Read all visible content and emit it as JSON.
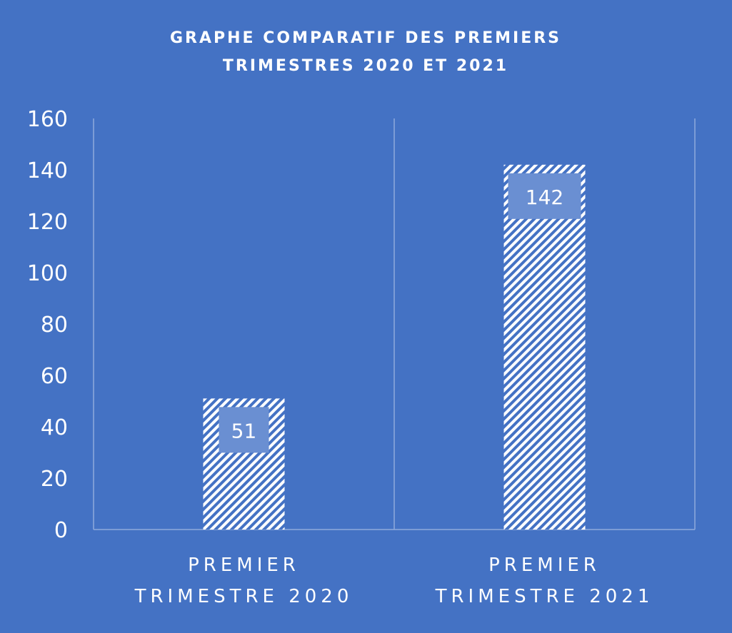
{
  "chart_data": {
    "type": "bar",
    "title_lines": [
      "GRAPHE COMPARATIF DES PREMIERS",
      "TRIMESTRES 2020 ET 2021"
    ],
    "categories": [
      [
        "PREMIER",
        "TRIMESTRE 2020"
      ],
      [
        "PREMIER",
        "TRIMESTRE 2021"
      ]
    ],
    "values": [
      51,
      142
    ],
    "data_labels": [
      "51",
      "142"
    ],
    "ylim": [
      0,
      160
    ],
    "yticks": [
      "0",
      "20",
      "40",
      "60",
      "80",
      "100",
      "120",
      "140",
      "160"
    ],
    "xlabel": "",
    "ylabel": "",
    "grid": "vertical",
    "bar_pattern": "diagonal-hatch",
    "colors": {
      "background": "#4472c4",
      "bar_fill": "#ffffff",
      "bar_hatch": "#4472c4",
      "label_box": "#6a8fd2",
      "axis": "#8eaadb",
      "text": "#ffffff"
    }
  }
}
